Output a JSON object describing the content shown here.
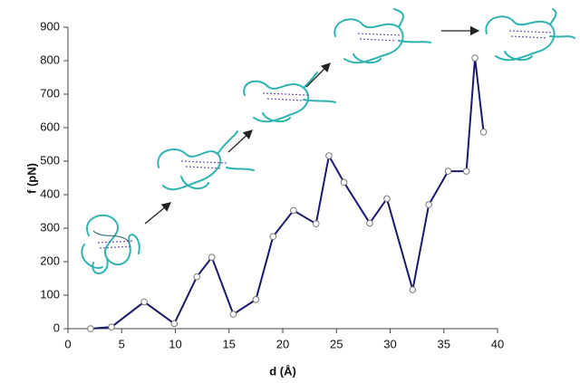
{
  "chart_data": {
    "type": "line",
    "x_label": "d (Å)",
    "y_label": "f (pN)",
    "series": [
      {
        "color": "#1a1a6b",
        "x": [
          2.1,
          4.05,
          7.1,
          9.9,
          12.0,
          13.4,
          15.4,
          17.5,
          19.1,
          21.0,
          23.1,
          24.3,
          25.7,
          28.1,
          29.7,
          32.1,
          33.6,
          35.4,
          37.1,
          37.9,
          38.7
        ],
        "values": [
          0,
          5,
          80,
          15,
          155,
          213,
          43,
          87,
          275,
          353,
          313,
          516,
          437,
          315,
          388,
          116,
          370,
          470,
          470,
          808,
          587
        ]
      }
    ],
    "xlim": [
      0,
      40
    ],
    "xticks": [
      0,
      5,
      10,
      15,
      20,
      25,
      30,
      35,
      40
    ],
    "ylim": [
      0,
      900
    ],
    "yticks": [
      0,
      100,
      200,
      300,
      400,
      500,
      600,
      700,
      800,
      900
    ],
    "grid": false
  }
}
